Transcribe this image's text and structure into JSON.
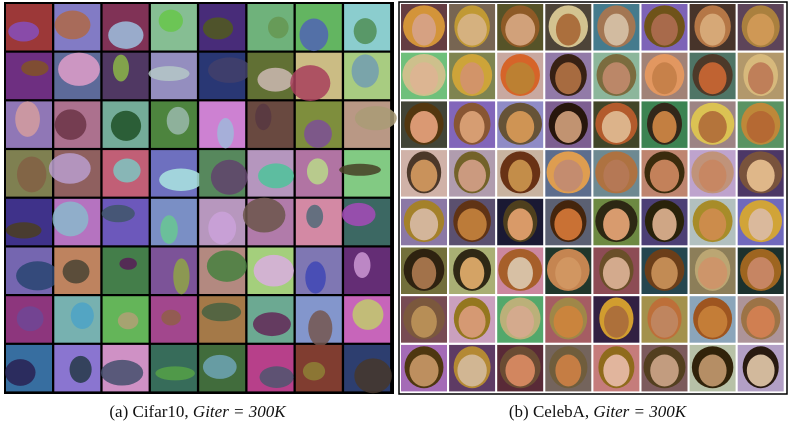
{
  "figure": {
    "panels": [
      {
        "caption": {
          "prefix": "(a) Cifar10,",
          "math": "Giter = 300K"
        }
      },
      {
        "caption": {
          "prefix": "(b) CelebA,",
          "math": "Giter = 300K"
        }
      }
    ]
  }
}
